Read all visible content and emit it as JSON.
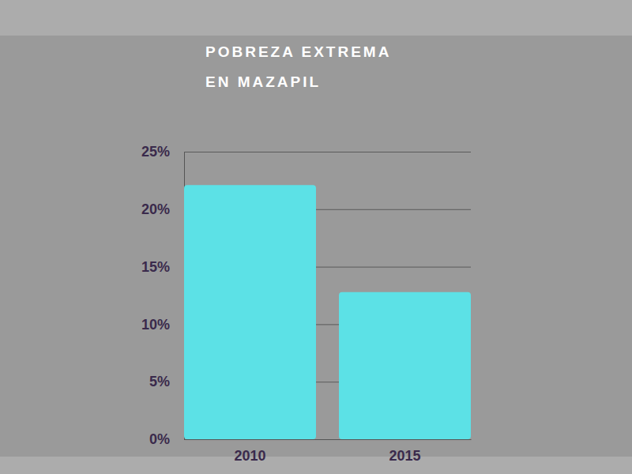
{
  "chart_data": {
    "type": "bar",
    "title": "POBREZA EXTREMA",
    "subtitle": "EN MAZAPIL",
    "categories": [
      "2010",
      "2015"
    ],
    "values": [
      22.1,
      12.8
    ],
    "color": "#5ce1e6",
    "ylim": [
      0,
      25
    ],
    "yticks": [
      {
        "value": 0,
        "label": "0%"
      },
      {
        "value": 5,
        "label": "5%"
      },
      {
        "value": 10,
        "label": "10%"
      },
      {
        "value": 15,
        "label": "15%"
      },
      {
        "value": 20,
        "label": "20%"
      },
      {
        "value": 25,
        "label": "25%"
      }
    ],
    "grid": true
  }
}
